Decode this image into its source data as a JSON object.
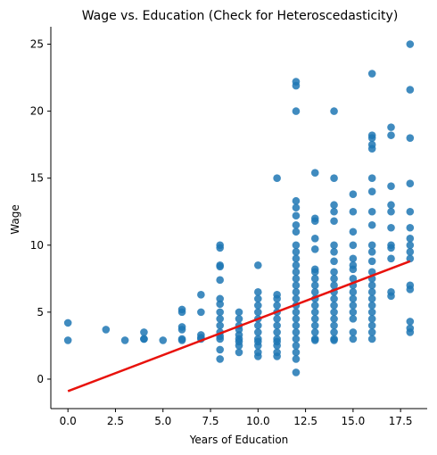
{
  "chart_data": {
    "type": "scatter",
    "title": "Wage vs. Education (Check for Heteroscedasticity)",
    "xlabel": "Years of Education",
    "ylabel": "Wage",
    "xlim": [
      -0.9,
      18.9
    ],
    "ylim": [
      -2.2,
      26.3
    ],
    "xticks": [
      0,
      2.5,
      5,
      7.5,
      10,
      12.5,
      15,
      17.5
    ],
    "xtick_labels": [
      "0.0",
      "2.5",
      "5.0",
      "7.5",
      "10.0",
      "12.5",
      "15.0",
      "17.5"
    ],
    "yticks": [
      0,
      5,
      10,
      15,
      20,
      25
    ],
    "ytick_labels": [
      "0",
      "5",
      "10",
      "15",
      "20",
      "25"
    ],
    "grid": false,
    "colors": {
      "points": "#1f77b4",
      "fit_line": "#e8120c"
    },
    "series": [
      {
        "type": "scatter",
        "points": [
          [
            0,
            4.2
          ],
          [
            0,
            2.9
          ],
          [
            2,
            3.7
          ],
          [
            3,
            2.9
          ],
          [
            4,
            3.5
          ],
          [
            4,
            3.0
          ],
          [
            4,
            3.0
          ],
          [
            5,
            2.9
          ],
          [
            6,
            5.2
          ],
          [
            6,
            5.0
          ],
          [
            6,
            3.9
          ],
          [
            6,
            3.7
          ],
          [
            6,
            3.0
          ],
          [
            6,
            2.9
          ],
          [
            7,
            6.3
          ],
          [
            7,
            5.0
          ],
          [
            7,
            3.3
          ],
          [
            7,
            3.1
          ],
          [
            7,
            3.0
          ],
          [
            8,
            10.0
          ],
          [
            8,
            9.8
          ],
          [
            8,
            8.5
          ],
          [
            8,
            8.4
          ],
          [
            8,
            7.4
          ],
          [
            8,
            6.0
          ],
          [
            8,
            5.6
          ],
          [
            8,
            5.0
          ],
          [
            8,
            4.5
          ],
          [
            8,
            4.0
          ],
          [
            8,
            3.5
          ],
          [
            8,
            3.2
          ],
          [
            8,
            3.0
          ],
          [
            8,
            2.2
          ],
          [
            8,
            1.5
          ],
          [
            9,
            5.0
          ],
          [
            9,
            4.5
          ],
          [
            9,
            4.0
          ],
          [
            9,
            3.7
          ],
          [
            9,
            3.3
          ],
          [
            9,
            3.0
          ],
          [
            9,
            2.8
          ],
          [
            9,
            2.5
          ],
          [
            9,
            2.0
          ],
          [
            10,
            8.5
          ],
          [
            10,
            6.5
          ],
          [
            10,
            6.0
          ],
          [
            10,
            5.5
          ],
          [
            10,
            5.0
          ],
          [
            10,
            4.5
          ],
          [
            10,
            4.0
          ],
          [
            10,
            3.5
          ],
          [
            10,
            3.0
          ],
          [
            10,
            2.8
          ],
          [
            10,
            2.5
          ],
          [
            10,
            2.0
          ],
          [
            10,
            1.7
          ],
          [
            11,
            15.0
          ],
          [
            11,
            6.3
          ],
          [
            11,
            6.0
          ],
          [
            11,
            5.5
          ],
          [
            11,
            5.0
          ],
          [
            11,
            4.5
          ],
          [
            11,
            4.0
          ],
          [
            11,
            3.5
          ],
          [
            11,
            3.0
          ],
          [
            11,
            2.8
          ],
          [
            11,
            2.5
          ],
          [
            11,
            2.0
          ],
          [
            11,
            1.7
          ],
          [
            12,
            22.2
          ],
          [
            12,
            21.9
          ],
          [
            12,
            20.0
          ],
          [
            12,
            13.3
          ],
          [
            12,
            12.8
          ],
          [
            12,
            12.2
          ],
          [
            12,
            11.5
          ],
          [
            12,
            11.0
          ],
          [
            12,
            10.0
          ],
          [
            12,
            9.5
          ],
          [
            12,
            9.0
          ],
          [
            12,
            8.5
          ],
          [
            12,
            8.0
          ],
          [
            12,
            7.5
          ],
          [
            12,
            7.0
          ],
          [
            12,
            6.5
          ],
          [
            12,
            6.0
          ],
          [
            12,
            5.5
          ],
          [
            12,
            5.0
          ],
          [
            12,
            4.5
          ],
          [
            12,
            4.0
          ],
          [
            12,
            3.5
          ],
          [
            12,
            3.0
          ],
          [
            12,
            2.5
          ],
          [
            12,
            2.0
          ],
          [
            12,
            1.5
          ],
          [
            12,
            0.5
          ],
          [
            13,
            15.4
          ],
          [
            13,
            12.0
          ],
          [
            13,
            11.8
          ],
          [
            13,
            10.5
          ],
          [
            13,
            9.7
          ],
          [
            13,
            8.2
          ],
          [
            13,
            8.0
          ],
          [
            13,
            7.5
          ],
          [
            13,
            7.0
          ],
          [
            13,
            6.5
          ],
          [
            13,
            6.0
          ],
          [
            13,
            5.5
          ],
          [
            13,
            5.0
          ],
          [
            13,
            4.5
          ],
          [
            13,
            4.0
          ],
          [
            13,
            3.5
          ],
          [
            13,
            3.0
          ],
          [
            13,
            2.9
          ],
          [
            14,
            20.0
          ],
          [
            14,
            15.0
          ],
          [
            14,
            13.0
          ],
          [
            14,
            12.5
          ],
          [
            14,
            11.8
          ],
          [
            14,
            10.0
          ],
          [
            14,
            9.5
          ],
          [
            14,
            8.8
          ],
          [
            14,
            8.0
          ],
          [
            14,
            7.5
          ],
          [
            14,
            7.0
          ],
          [
            14,
            6.5
          ],
          [
            14,
            6.0
          ],
          [
            14,
            5.5
          ],
          [
            14,
            5.0
          ],
          [
            14,
            4.5
          ],
          [
            14,
            4.0
          ],
          [
            14,
            3.5
          ],
          [
            14,
            3.0
          ],
          [
            14,
            2.9
          ],
          [
            15,
            13.8
          ],
          [
            15,
            12.5
          ],
          [
            15,
            11.0
          ],
          [
            15,
            10.0
          ],
          [
            15,
            9.0
          ],
          [
            15,
            8.5
          ],
          [
            15,
            8.2
          ],
          [
            15,
            7.5
          ],
          [
            15,
            7.0
          ],
          [
            15,
            6.5
          ],
          [
            15,
            6.0
          ],
          [
            15,
            5.5
          ],
          [
            15,
            5.0
          ],
          [
            15,
            4.5
          ],
          [
            15,
            3.5
          ],
          [
            15,
            3.0
          ],
          [
            16,
            22.8
          ],
          [
            16,
            18.2
          ],
          [
            16,
            18.0
          ],
          [
            16,
            17.5
          ],
          [
            16,
            17.2
          ],
          [
            16,
            15.0
          ],
          [
            16,
            14.0
          ],
          [
            16,
            12.5
          ],
          [
            16,
            11.5
          ],
          [
            16,
            10.0
          ],
          [
            16,
            9.5
          ],
          [
            16,
            8.8
          ],
          [
            16,
            8.0
          ],
          [
            16,
            7.5
          ],
          [
            16,
            7.0
          ],
          [
            16,
            6.5
          ],
          [
            16,
            6.0
          ],
          [
            16,
            5.5
          ],
          [
            16,
            5.0
          ],
          [
            16,
            4.5
          ],
          [
            16,
            4.0
          ],
          [
            16,
            3.5
          ],
          [
            16,
            3.0
          ],
          [
            17,
            18.8
          ],
          [
            17,
            18.2
          ],
          [
            17,
            14.4
          ],
          [
            17,
            13.0
          ],
          [
            17,
            12.5
          ],
          [
            17,
            11.3
          ],
          [
            17,
            10.0
          ],
          [
            17,
            9.8
          ],
          [
            17,
            9.0
          ],
          [
            17,
            6.5
          ],
          [
            17,
            6.2
          ],
          [
            18,
            25.0
          ],
          [
            18,
            21.6
          ],
          [
            18,
            18.0
          ],
          [
            18,
            14.6
          ],
          [
            18,
            12.5
          ],
          [
            18,
            11.3
          ],
          [
            18,
            10.5
          ],
          [
            18,
            10.0
          ],
          [
            18,
            9.5
          ],
          [
            18,
            9.0
          ],
          [
            18,
            7.0
          ],
          [
            18,
            6.7
          ],
          [
            18,
            4.3
          ],
          [
            18,
            3.8
          ],
          [
            18,
            3.5
          ]
        ]
      },
      {
        "type": "line",
        "x": [
          0,
          18
        ],
        "y": [
          -0.9,
          8.8
        ]
      }
    ]
  }
}
